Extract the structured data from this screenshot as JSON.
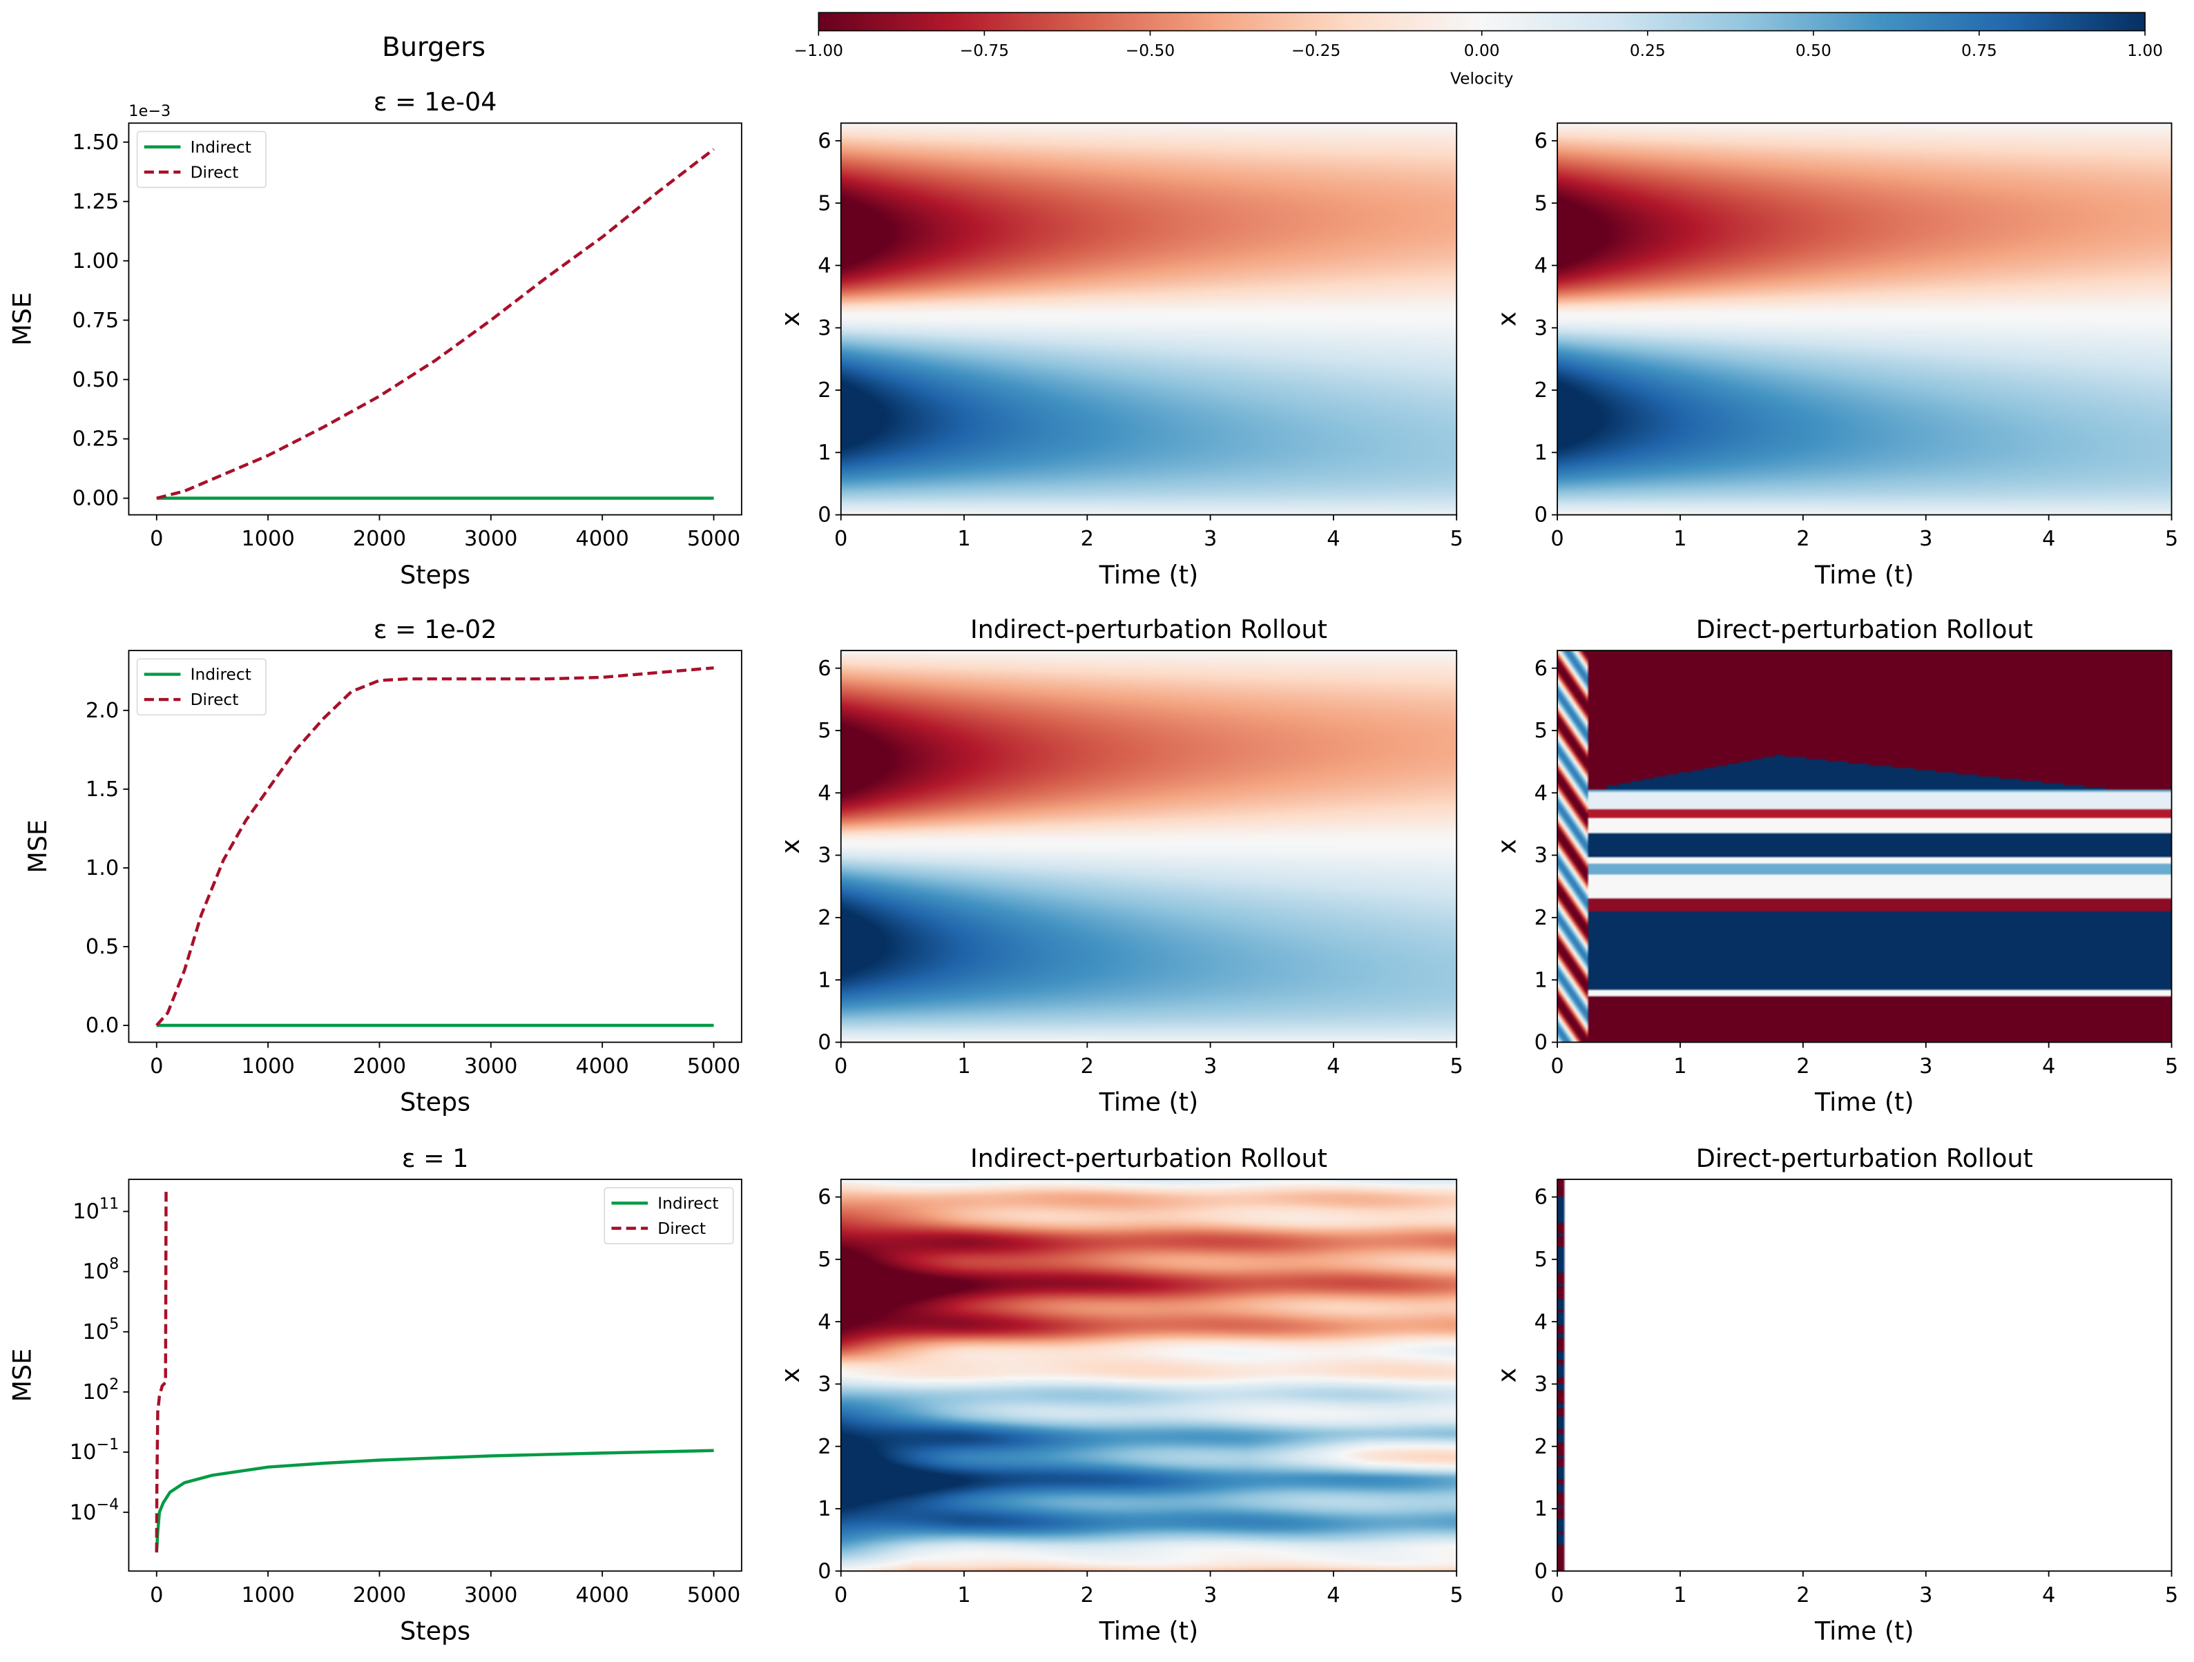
{
  "figure": {
    "suptitle": "Burgers"
  },
  "colorbar": {
    "label": "Velocity",
    "colormap": "RdBu",
    "min": -1,
    "max": 1,
    "ticks": [
      -1,
      -0.75,
      -0.5,
      -0.25,
      0,
      0.25,
      0.5,
      0.75,
      1
    ],
    "tick_labels": [
      "−1.00",
      "−0.75",
      "−0.50",
      "−0.25",
      "0.00",
      "0.25",
      "0.50",
      "0.75",
      "1.00"
    ],
    "colors": [
      "#67001f",
      "#b2182b",
      "#d6604d",
      "#f4a582",
      "#fddbc7",
      "#f7f7f7",
      "#d1e5f0",
      "#92c5de",
      "#4393c3",
      "#2166ac",
      "#053061"
    ]
  },
  "chart_data": [
    {
      "type": "line",
      "title": "ε = 1e-04",
      "xlabel": "Steps",
      "ylabel": "MSE",
      "offset_text": "1e−3",
      "yscale": "linear",
      "xlim": [
        -250,
        5250
      ],
      "ylim": [
        -0.07,
        1.58
      ],
      "xticks": [
        0,
        1000,
        2000,
        3000,
        4000,
        5000
      ],
      "xtick_labels": [
        "0",
        "1000",
        "2000",
        "3000",
        "4000",
        "5000"
      ],
      "yticks": [
        0,
        0.25,
        0.5,
        0.75,
        1.0,
        1.25,
        1.5
      ],
      "ytick_labels": [
        "0.00",
        "0.25",
        "0.50",
        "0.75",
        "1.00",
        "1.25",
        "1.50"
      ],
      "legend": "top-left",
      "series": [
        {
          "name": "Indirect",
          "color": "#009a44",
          "style": "solid",
          "x": [
            0,
            5000
          ],
          "y": [
            0,
            0
          ]
        },
        {
          "name": "Direct",
          "color": "#a8102a",
          "style": "dashed",
          "x": [
            0,
            250,
            500,
            750,
            1000,
            1500,
            2000,
            2500,
            3000,
            3500,
            4000,
            4500,
            5000
          ],
          "y": [
            0,
            0.03,
            0.08,
            0.13,
            0.18,
            0.3,
            0.43,
            0.58,
            0.75,
            0.93,
            1.1,
            1.29,
            1.47
          ]
        }
      ]
    },
    {
      "type": "heatmap",
      "title": "",
      "field": "clean",
      "xlabel": "Time (t)",
      "ylabel": "x",
      "xlim": [
        0,
        5
      ],
      "ylim": [
        0,
        6.283
      ],
      "xticks": [
        0,
        1,
        2,
        3,
        4,
        5
      ],
      "xtick_labels": [
        "0",
        "1",
        "2",
        "3",
        "4",
        "5"
      ],
      "yticks": [
        0,
        1,
        2,
        3,
        4,
        5,
        6
      ],
      "ytick_labels": [
        "0",
        "1",
        "2",
        "3",
        "4",
        "5",
        "6"
      ],
      "vmin": -1,
      "vmax": 1
    },
    {
      "type": "heatmap",
      "title": "",
      "field": "clean",
      "xlabel": "Time (t)",
      "ylabel": "x",
      "xlim": [
        0,
        5
      ],
      "ylim": [
        0,
        6.283
      ],
      "xticks": [
        0,
        1,
        2,
        3,
        4,
        5
      ],
      "xtick_labels": [
        "0",
        "1",
        "2",
        "3",
        "4",
        "5"
      ],
      "yticks": [
        0,
        1,
        2,
        3,
        4,
        5,
        6
      ],
      "ytick_labels": [
        "0",
        "1",
        "2",
        "3",
        "4",
        "5",
        "6"
      ],
      "vmin": -1,
      "vmax": 1
    },
    {
      "type": "line",
      "title": "ε = 1e-02",
      "xlabel": "Steps",
      "ylabel": "MSE",
      "yscale": "linear",
      "xlim": [
        -250,
        5250
      ],
      "ylim": [
        -0.107,
        2.38
      ],
      "xticks": [
        0,
        1000,
        2000,
        3000,
        4000,
        5000
      ],
      "xtick_labels": [
        "0",
        "1000",
        "2000",
        "3000",
        "4000",
        "5000"
      ],
      "yticks": [
        0,
        0.5,
        1.0,
        1.5,
        2.0
      ],
      "ytick_labels": [
        "0.0",
        "0.5",
        "1.0",
        "1.5",
        "2.0"
      ],
      "legend": "top-left",
      "series": [
        {
          "name": "Indirect",
          "color": "#009a44",
          "style": "solid",
          "x": [
            0,
            5000
          ],
          "y": [
            0,
            0
          ]
        },
        {
          "name": "Direct",
          "color": "#a8102a",
          "style": "dashed",
          "x": [
            0,
            100,
            250,
            400,
            600,
            800,
            1000,
            1250,
            1500,
            1750,
            2000,
            2250,
            2500,
            3000,
            3500,
            4000,
            4500,
            5000
          ],
          "y": [
            0,
            0.08,
            0.35,
            0.7,
            1.05,
            1.3,
            1.5,
            1.75,
            1.95,
            2.12,
            2.19,
            2.2,
            2.2,
            2.2,
            2.2,
            2.21,
            2.24,
            2.27
          ]
        }
      ]
    },
    {
      "type": "heatmap",
      "title": "Indirect-perturbation Rollout",
      "field": "clean",
      "xlabel": "Time (t)",
      "ylabel": "x",
      "xlim": [
        0,
        5
      ],
      "ylim": [
        0,
        6.283
      ],
      "xticks": [
        0,
        1,
        2,
        3,
        4,
        5
      ],
      "xtick_labels": [
        "0",
        "1",
        "2",
        "3",
        "4",
        "5"
      ],
      "yticks": [
        0,
        1,
        2,
        3,
        4,
        5,
        6
      ],
      "ytick_labels": [
        "0",
        "1",
        "2",
        "3",
        "4",
        "5",
        "6"
      ],
      "vmin": -1,
      "vmax": 1
    },
    {
      "type": "heatmap",
      "title": "Direct-perturbation Rollout",
      "field": "banded",
      "xlabel": "Time (t)",
      "ylabel": "x",
      "xlim": [
        0,
        5
      ],
      "ylim": [
        0,
        6.283
      ],
      "xticks": [
        0,
        1,
        2,
        3,
        4,
        5
      ],
      "xtick_labels": [
        "0",
        "1",
        "2",
        "3",
        "4",
        "5"
      ],
      "yticks": [
        0,
        1,
        2,
        3,
        4,
        5,
        6
      ],
      "ytick_labels": [
        "0",
        "1",
        "2",
        "3",
        "4",
        "5",
        "6"
      ],
      "vmin": -1,
      "vmax": 1
    },
    {
      "type": "line",
      "title": "ε = 1",
      "xlabel": "Steps",
      "ylabel": "MSE",
      "yscale": "log",
      "xlim": [
        -250,
        5250
      ],
      "ylim_log10": [
        -6.93,
        12.6
      ],
      "xticks": [
        0,
        1000,
        2000,
        3000,
        4000,
        5000
      ],
      "xtick_labels": [
        "0",
        "1000",
        "2000",
        "3000",
        "4000",
        "5000"
      ],
      "yticks_log10": [
        -4,
        -1,
        2,
        5,
        8,
        11
      ],
      "ytick_labels": [
        {
          "base": "10",
          "exp": "−4"
        },
        {
          "base": "10",
          "exp": "−1"
        },
        {
          "base": "10",
          "exp": "2"
        },
        {
          "base": "10",
          "exp": "5"
        },
        {
          "base": "10",
          "exp": "8"
        },
        {
          "base": "10",
          "exp": "11"
        }
      ],
      "legend": "top-right",
      "series": [
        {
          "name": "Indirect",
          "color": "#009a44",
          "style": "solid",
          "x": [
            0,
            10,
            25,
            60,
            120,
            250,
            500,
            1000,
            1500,
            2000,
            3000,
            4000,
            5000
          ],
          "y": [
            1e-06,
            1e-05,
            0.0001,
            0.0003,
            0.001,
            0.003,
            0.007,
            0.018,
            0.028,
            0.04,
            0.065,
            0.09,
            0.12
          ]
        },
        {
          "name": "Direct",
          "color": "#a8102a",
          "style": "dashed",
          "x": [
            0,
            2,
            10,
            25,
            50,
            80,
            82,
            85
          ],
          "y": [
            1e-06,
            0.001,
            10,
            60,
            200,
            300,
            1000000.0,
            1000000000000.0
          ]
        }
      ]
    },
    {
      "type": "heatmap",
      "title": "Indirect-perturbation Rollout",
      "field": "perturbed",
      "xlabel": "Time (t)",
      "ylabel": "x",
      "xlim": [
        0,
        5
      ],
      "ylim": [
        0,
        6.283
      ],
      "xticks": [
        0,
        1,
        2,
        3,
        4,
        5
      ],
      "xtick_labels": [
        "0",
        "1",
        "2",
        "3",
        "4",
        "5"
      ],
      "yticks": [
        0,
        1,
        2,
        3,
        4,
        5,
        6
      ],
      "ytick_labels": [
        "0",
        "1",
        "2",
        "3",
        "4",
        "5",
        "6"
      ],
      "vmin": -1,
      "vmax": 1
    },
    {
      "type": "heatmap",
      "title": "Direct-perturbation Rollout",
      "field": "diverged",
      "xlabel": "Time (t)",
      "ylabel": "x",
      "xlim": [
        0,
        5
      ],
      "ylim": [
        0,
        6.283
      ],
      "xticks": [
        0,
        1,
        2,
        3,
        4,
        5
      ],
      "xtick_labels": [
        "0",
        "1",
        "2",
        "3",
        "4",
        "5"
      ],
      "yticks": [
        0,
        1,
        2,
        3,
        4,
        5,
        6
      ],
      "ytick_labels": [
        "0",
        "1",
        "2",
        "3",
        "4",
        "5",
        "6"
      ],
      "vmin": -1,
      "vmax": 1
    }
  ]
}
